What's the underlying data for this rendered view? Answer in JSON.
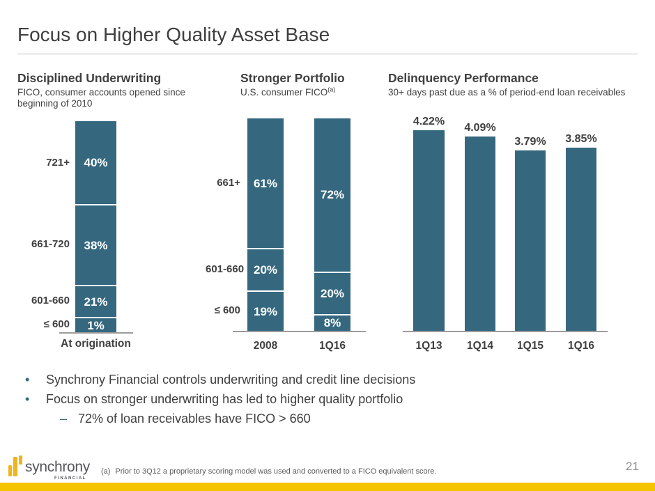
{
  "slide": {
    "title": "Focus on Higher Quality Asset Base",
    "page_number": "21"
  },
  "logo": {
    "name": "synchrony",
    "subtext": "FINANCIAL"
  },
  "footnote": {
    "marker": "(a)",
    "text": "Prior to 3Q12 a proprietary scoring model was used and converted to a FICO equivalent score."
  },
  "bullets": {
    "items": [
      {
        "level": 1,
        "marker": "•",
        "text": "Synchrony Financial controls underwriting and credit line decisions"
      },
      {
        "level": 1,
        "marker": "•",
        "text": "Focus on stronger underwriting has led to higher quality portfolio"
      },
      {
        "level": 2,
        "marker": "–",
        "text": "72% of loan receivables have FICO > 660"
      }
    ]
  },
  "colors": {
    "bar_teal": "#35687F",
    "gold_bar": "#F5C400",
    "logo_gold": "#F0B41E",
    "text_dark": "#3F3F3F",
    "text_gray": "#595A5C",
    "axis_gray": "#9C9C9C"
  },
  "chart_data": [
    {
      "type": "bar",
      "stacked": true,
      "title": "Disciplined Underwriting",
      "subtitle": "FICO, consumer accounts opened since beginning of 2010",
      "unit": "%",
      "order": "top-to-bottom",
      "row_labels": [
        "721+",
        "661-720",
        "601-660",
        "≤ 600"
      ],
      "categories": [
        "At origination"
      ],
      "series": [
        {
          "name": "721+",
          "values": [
            40
          ]
        },
        {
          "name": "661-720",
          "values": [
            38
          ]
        },
        {
          "name": "601-660",
          "values": [
            21
          ]
        },
        {
          "name": "≤ 600",
          "values": [
            1
          ]
        }
      ],
      "segment_labels": [
        [
          "40%",
          "38%",
          "21%",
          "1%"
        ]
      ]
    },
    {
      "type": "bar",
      "stacked": true,
      "title": "Stronger Portfolio",
      "subtitle": "U.S. consumer FICO",
      "subtitle_superscript": "(a)",
      "unit": "%",
      "order": "top-to-bottom",
      "row_labels": [
        "661+",
        "601-660",
        "≤ 600"
      ],
      "categories": [
        "2008",
        "1Q16"
      ],
      "series": [
        {
          "name": "661+",
          "values": [
            61,
            72
          ]
        },
        {
          "name": "601-660",
          "values": [
            20,
            20
          ]
        },
        {
          "name": "≤ 600",
          "values": [
            19,
            8
          ]
        }
      ],
      "segment_labels": [
        [
          "61%",
          "20%",
          "19%"
        ],
        [
          "72%",
          "20%",
          "8%"
        ]
      ]
    },
    {
      "type": "bar",
      "stacked": false,
      "title": "Delinquency Performance",
      "subtitle": "30+ days past due as a % of period-end loan receivables",
      "unit": "%",
      "categories": [
        "1Q13",
        "1Q14",
        "1Q15",
        "1Q16"
      ],
      "values": [
        4.22,
        4.09,
        3.79,
        3.85
      ],
      "value_labels": [
        "4.22%",
        "4.09%",
        "3.79%",
        "3.85%"
      ],
      "ylim": [
        0,
        4.4
      ],
      "grid": false,
      "legend": "none"
    }
  ]
}
